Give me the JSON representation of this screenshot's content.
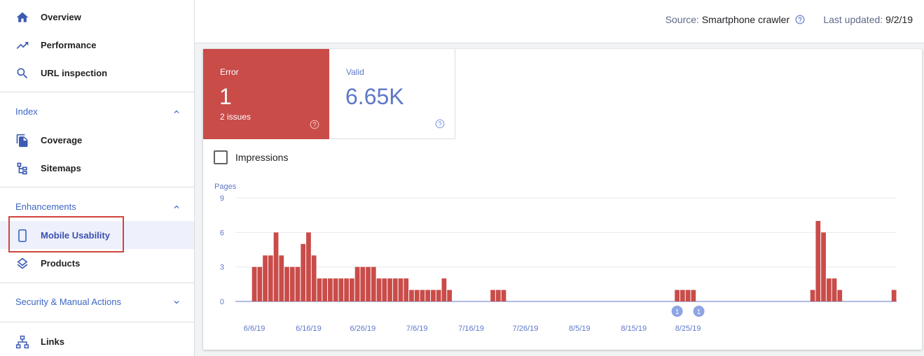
{
  "sidebar": {
    "top_items": [
      {
        "label": "Overview",
        "icon": "home-icon"
      },
      {
        "label": "Performance",
        "icon": "trending-up-icon"
      },
      {
        "label": "URL inspection",
        "icon": "search-icon"
      }
    ],
    "index": {
      "label": "Index",
      "items": [
        {
          "label": "Coverage",
          "icon": "copy-icon"
        },
        {
          "label": "Sitemaps",
          "icon": "sitemap-icon"
        }
      ]
    },
    "enhancements": {
      "label": "Enhancements",
      "items": [
        {
          "label": "Mobile Usability",
          "icon": "smartphone-icon",
          "active": true
        },
        {
          "label": "Products",
          "icon": "layers-icon"
        }
      ]
    },
    "security": {
      "label": "Security & Manual Actions"
    },
    "links": {
      "label": "Links",
      "icon": "network-icon"
    }
  },
  "topbar": {
    "source_label": "Source:",
    "source_value": "Smartphone crawler",
    "updated_label": "Last updated:",
    "updated_value": "9/2/19"
  },
  "tiles": {
    "error": {
      "label": "Error",
      "value": "1",
      "sub": "2 issues"
    },
    "valid": {
      "label": "Valid",
      "value": "6.65K"
    }
  },
  "impressions_label": "Impressions",
  "colors": {
    "accent": "#3c67c6",
    "error": "#c94c49",
    "valid": "#5f78c8",
    "annotation": "#8ea5e6"
  },
  "chart_data": {
    "type": "bar",
    "ylabel": "Pages",
    "ylim": [
      0,
      9
    ],
    "yticks": [
      0,
      3,
      6,
      9
    ],
    "xtick_labels": [
      "6/6/19",
      "6/16/19",
      "6/26/19",
      "7/6/19",
      "7/16/19",
      "7/26/19",
      "8/5/19",
      "8/15/19",
      "8/25/19"
    ],
    "start_date": "2019-06-03",
    "values": [
      0,
      0,
      0,
      3,
      3,
      4,
      4,
      6,
      4,
      3,
      3,
      3,
      5,
      6,
      4,
      2,
      2,
      2,
      2,
      2,
      2,
      2,
      3,
      3,
      3,
      3,
      2,
      2,
      2,
      2,
      2,
      2,
      1,
      1,
      1,
      1,
      1,
      1,
      2,
      1,
      0,
      0,
      0,
      0,
      0,
      0,
      0,
      1,
      1,
      1,
      0,
      0,
      0,
      0,
      0,
      0,
      0,
      0,
      0,
      0,
      0,
      0,
      0,
      0,
      0,
      0,
      0,
      0,
      0,
      0,
      0,
      0,
      0,
      0,
      0,
      0,
      0,
      0,
      0,
      0,
      0,
      1,
      1,
      1,
      1,
      0,
      0,
      0,
      0,
      0,
      0,
      0,
      0,
      0,
      0,
      0,
      0,
      0,
      0,
      0,
      0,
      0,
      0,
      0,
      0,
      0,
      1,
      7,
      6,
      2,
      2,
      1,
      0,
      0,
      0,
      0,
      0,
      0,
      0,
      0,
      0,
      1
    ],
    "annotations": [
      {
        "date": "2019-08-23",
        "label": "1"
      },
      {
        "date": "2019-08-27",
        "label": "1"
      }
    ]
  }
}
